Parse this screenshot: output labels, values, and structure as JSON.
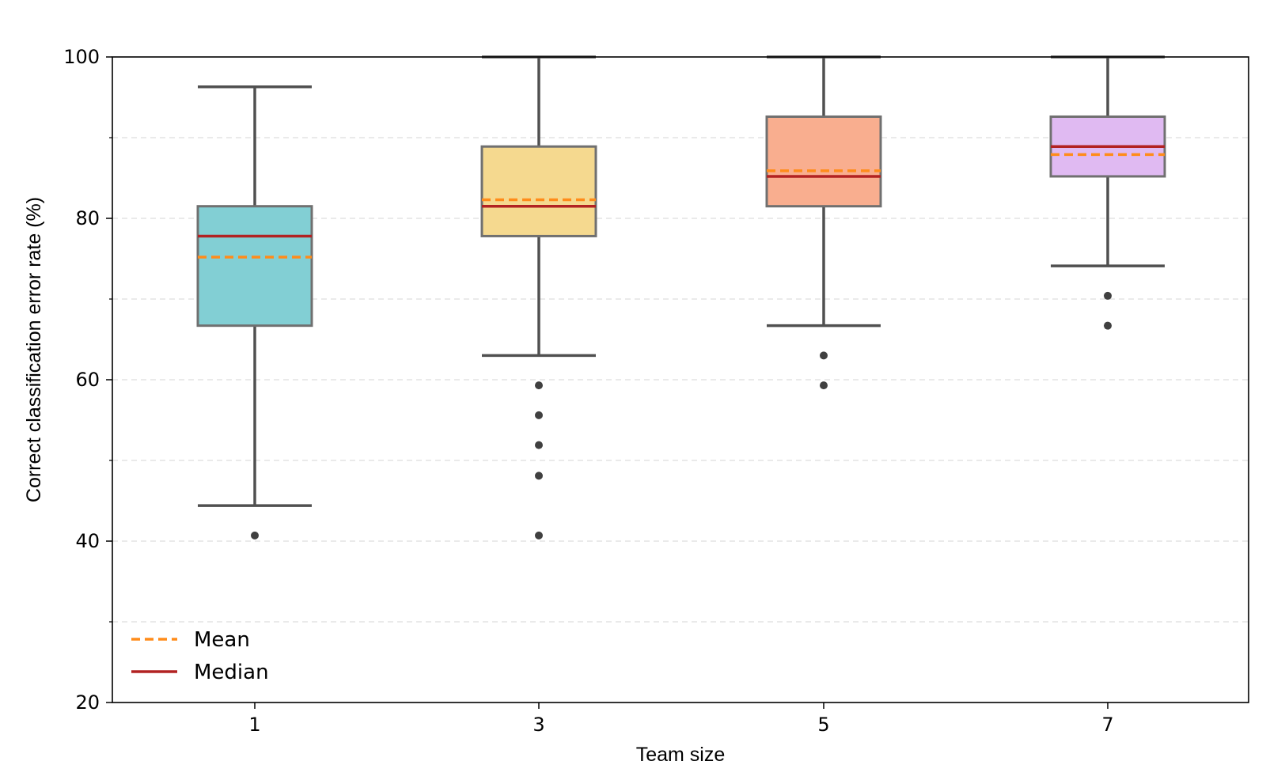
{
  "chart_data": {
    "type": "box",
    "title": "",
    "xlabel": "Team size",
    "ylabel": "Correct classification error rate (%)",
    "ylim": [
      20,
      100
    ],
    "yticks_major": [
      20,
      40,
      60,
      80,
      100
    ],
    "yticks_minor": [
      30,
      50,
      70,
      90
    ],
    "grid": "horizontal dashed, light",
    "categories": [
      "1",
      "3",
      "5",
      "7"
    ],
    "boxes": [
      {
        "category": "1",
        "whisker_low": 44.4,
        "q1": 66.7,
        "median": 77.8,
        "mean": 75.2,
        "q3": 81.5,
        "whisker_high": 96.3,
        "outliers": [
          40.7
        ],
        "color": "#82cfd4"
      },
      {
        "category": "3",
        "whisker_low": 63.0,
        "q1": 77.8,
        "median": 81.5,
        "mean": 82.3,
        "q3": 88.9,
        "whisker_high": 100.0,
        "outliers": [
          59.3,
          55.6,
          51.9,
          48.1,
          40.7
        ],
        "color": "#f5d98f"
      },
      {
        "category": "5",
        "whisker_low": 66.7,
        "q1": 81.5,
        "median": 85.2,
        "mean": 85.9,
        "q3": 92.6,
        "whisker_high": 100.0,
        "outliers": [
          63.0,
          59.3
        ],
        "color": "#f9ae8f"
      },
      {
        "category": "7",
        "whisker_low": 74.1,
        "q1": 85.2,
        "median": 88.9,
        "mean": 87.9,
        "q3": 92.6,
        "whisker_high": 100.0,
        "outliers": [
          70.4,
          66.7
        ],
        "color": "#e0baf2"
      }
    ],
    "legend": {
      "position": "lower-left",
      "entries": [
        {
          "label": "Mean",
          "style": "dashed",
          "color": "#ff8c1a"
        },
        {
          "label": "Median",
          "style": "solid",
          "color": "#b22222"
        }
      ]
    },
    "colors": {
      "median": "#b22222",
      "mean": "#ff8c1a",
      "whisker": "#505050",
      "box_edge": "#707070",
      "outlier": "#404040"
    }
  }
}
